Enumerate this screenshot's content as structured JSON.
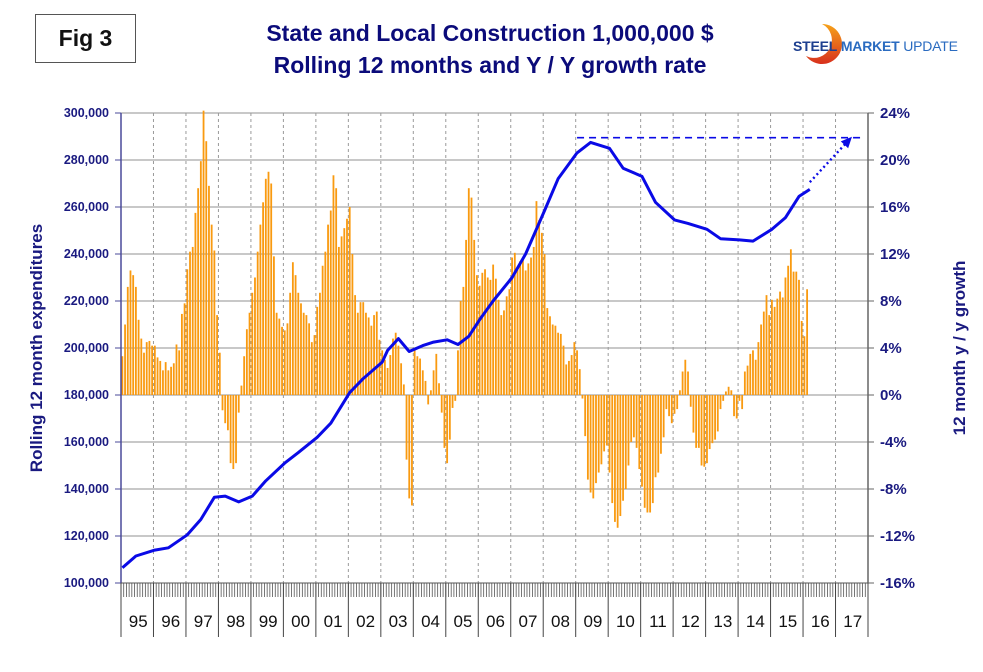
{
  "figure_label": "Fig 3",
  "logo": {
    "word1": "STEEL",
    "word2": "MARKET",
    "word3": "UPDATE"
  },
  "colors": {
    "title": "#0b0b7a",
    "bars": "#f99a10",
    "line": "#0a0ae6",
    "axis_text": "#1a1a80"
  },
  "chart_data": {
    "type": "bar+line",
    "title": "State and Local Construction 1,000,000 $",
    "subtitle": "Rolling 12 months and Y / Y growth rate",
    "ylabel_left": "Rolling 12 month expenditures",
    "ylabel_right": "12 month y / y growth",
    "ylim_left": [
      100000,
      300000
    ],
    "yticks_left": [
      "300,000",
      "280,000",
      "260,000",
      "240,000",
      "220,000",
      "200,000",
      "180,000",
      "160,000",
      "140,000",
      "120,000",
      "100,000"
    ],
    "ylim_right": [
      -16,
      24
    ],
    "yticks_right": [
      "24%",
      "20%",
      "16%",
      "12%",
      "8%",
      "4%",
      "0%",
      "-4%",
      "-8%",
      "-12%",
      "-16%"
    ],
    "xlabel": "",
    "x_categories": [
      "95",
      "96",
      "97",
      "98",
      "99",
      "00",
      "01",
      "02",
      "03",
      "04",
      "05",
      "06",
      "07",
      "08",
      "09",
      "10",
      "11",
      "12",
      "13",
      "14",
      "15",
      "16",
      "17"
    ],
    "grid": "horizontal solid, vertical dashed per year",
    "series": [
      {
        "name": "12 month y/y growth (%)",
        "type": "bar",
        "axis": "right",
        "x_start": "1995-01",
        "frequency": "monthly",
        "values": [
          3.3,
          6.0,
          9.2,
          10.6,
          10.2,
          9.2,
          6.4,
          4.8,
          3.6,
          4.5,
          4.6,
          4.2,
          4.2,
          3.2,
          2.9,
          2.1,
          2.8,
          2.1,
          2.4,
          2.7,
          4.3,
          3.8,
          6.9,
          7.8,
          10.7,
          12.2,
          12.6,
          15.5,
          17.6,
          19.9,
          24.2,
          21.6,
          17.8,
          14.5,
          12.3,
          6.8,
          3.6,
          -1.3,
          -2.4,
          -3.0,
          -5.8,
          -6.3,
          -5.8,
          -1.5,
          0.8,
          3.3,
          5.6,
          7.0,
          8.7,
          10.0,
          12.2,
          14.5,
          16.4,
          18.4,
          19.0,
          18.0,
          11.8,
          7.0,
          6.5,
          5.8,
          5.5,
          6.1,
          8.7,
          11.3,
          10.2,
          8.7,
          7.8,
          7.0,
          6.8,
          6.1,
          4.5,
          5.1,
          7.5,
          8.7,
          11.0,
          12.2,
          14.5,
          15.7,
          18.7,
          17.6,
          12.6,
          13.5,
          14.2,
          15.0,
          16.0,
          12.0,
          8.5,
          7.0,
          7.9,
          7.9,
          7.0,
          6.6,
          5.9,
          6.8,
          7.1,
          4.7,
          3.8,
          3.0,
          2.3,
          3.4,
          4.8,
          5.3,
          4.2,
          2.7,
          0.9,
          -5.5,
          -8.8,
          -9.4,
          4.0,
          3.3,
          3.1,
          2.1,
          1.2,
          -0.8,
          0.4,
          2.1,
          3.5,
          1.0,
          -1.5,
          -4.5,
          -5.8,
          -3.8,
          -1.1,
          -0.5,
          3.8,
          8.0,
          9.2,
          13.2,
          17.6,
          16.8,
          13.2,
          10.2,
          9.3,
          10.4,
          10.7,
          10.0,
          9.8,
          11.1,
          9.9,
          8.1,
          6.8,
          7.2,
          8.4,
          9.0,
          11.7,
          12.1,
          10.7,
          11.4,
          11.6,
          10.6,
          11.2,
          11.7,
          12.6,
          16.5,
          14.9,
          13.8,
          12.0,
          7.4,
          6.7,
          6.0,
          5.9,
          5.3,
          5.2,
          4.2,
          2.6,
          2.9,
          3.4,
          4.5,
          3.8,
          2.2,
          -0.3,
          -3.5,
          -7.2,
          -8.3,
          -8.8,
          -7.5,
          -6.6,
          -5.9,
          -4.8,
          -4.3,
          -6.6,
          -9.2,
          -10.8,
          -11.3,
          -10.3,
          -9.0,
          -8.0,
          -6.0,
          -4.0,
          -3.6,
          -4.5,
          -6.3,
          -7.8,
          -9.6,
          -10.0,
          -10.0,
          -9.2,
          -7.0,
          -6.6,
          -5.0,
          -3.6,
          -1.2,
          -1.8,
          -2.4,
          -1.6,
          -1.2,
          0.4,
          2.0,
          3.0,
          2.0,
          -1.0,
          -3.2,
          -4.5,
          -4.5,
          -6.0,
          -6.1,
          -5.8,
          -4.6,
          -4.1,
          -3.8,
          -3.1,
          -1.2,
          -0.5,
          0.3,
          0.7,
          0.4,
          -1.8,
          -2.0,
          -0.5,
          -1.2,
          2.0,
          2.5,
          3.5,
          3.8,
          3.0,
          4.5,
          6.0,
          7.1,
          8.5,
          6.8,
          8.1,
          7.5,
          8.2,
          8.8,
          8.3,
          10.0,
          11.0,
          12.4,
          10.5,
          10.5,
          9.8,
          6.3,
          5.0,
          9.0
        ]
      },
      {
        "name": "Rolling 12 month expenditures ($M)",
        "type": "line",
        "axis": "left",
        "points": [
          [
            "1995-01",
            106500
          ],
          [
            "1995-06",
            111500
          ],
          [
            "1996-01",
            114000
          ],
          [
            "1996-06",
            115000
          ],
          [
            "1997-01",
            120500
          ],
          [
            "1997-06",
            127000
          ],
          [
            "1997-11",
            136500
          ],
          [
            "1998-03",
            137000
          ],
          [
            "1998-08",
            134500
          ],
          [
            "1999-01",
            137000
          ],
          [
            "1999-06",
            143500
          ],
          [
            "2000-01",
            151000
          ],
          [
            "2000-06",
            155500
          ],
          [
            "2001-01",
            162000
          ],
          [
            "2001-06",
            168000
          ],
          [
            "2002-01",
            181000
          ],
          [
            "2002-06",
            187000
          ],
          [
            "2003-01",
            194000
          ],
          [
            "2003-03",
            199000
          ],
          [
            "2003-07",
            204000
          ],
          [
            "2003-11",
            198500
          ],
          [
            "2004-04",
            201000
          ],
          [
            "2004-08",
            202500
          ],
          [
            "2005-01",
            203500
          ],
          [
            "2005-05",
            201500
          ],
          [
            "2005-09",
            205000
          ],
          [
            "2006-01",
            212000
          ],
          [
            "2006-06",
            220000
          ],
          [
            "2007-01",
            230000
          ],
          [
            "2007-06",
            240000
          ],
          [
            "2008-01",
            258500
          ],
          [
            "2008-06",
            272000
          ],
          [
            "2009-01",
            283000
          ],
          [
            "2009-06",
            287500
          ],
          [
            "2010-01",
            285000
          ],
          [
            "2010-06",
            276500
          ],
          [
            "2011-01",
            273000
          ],
          [
            "2011-06",
            262000
          ],
          [
            "2012-01",
            254500
          ],
          [
            "2012-06",
            253000
          ],
          [
            "2013-01",
            250500
          ],
          [
            "2013-06",
            246500
          ],
          [
            "2014-01",
            246000
          ],
          [
            "2014-06",
            245500
          ],
          [
            "2015-01",
            250500
          ],
          [
            "2015-06",
            255500
          ],
          [
            "2015-11",
            264500
          ],
          [
            "2016-03",
            267500
          ]
        ]
      }
    ],
    "annotations": [
      {
        "type": "dashed_horizontal_line",
        "value_left": 289500,
        "from": "2009-01",
        "to": "2017-10",
        "label": ""
      },
      {
        "type": "dotted_arrow",
        "from": [
          "2016-03",
          268000
        ],
        "to": [
          "2017-10",
          289500
        ],
        "label": ""
      }
    ]
  }
}
